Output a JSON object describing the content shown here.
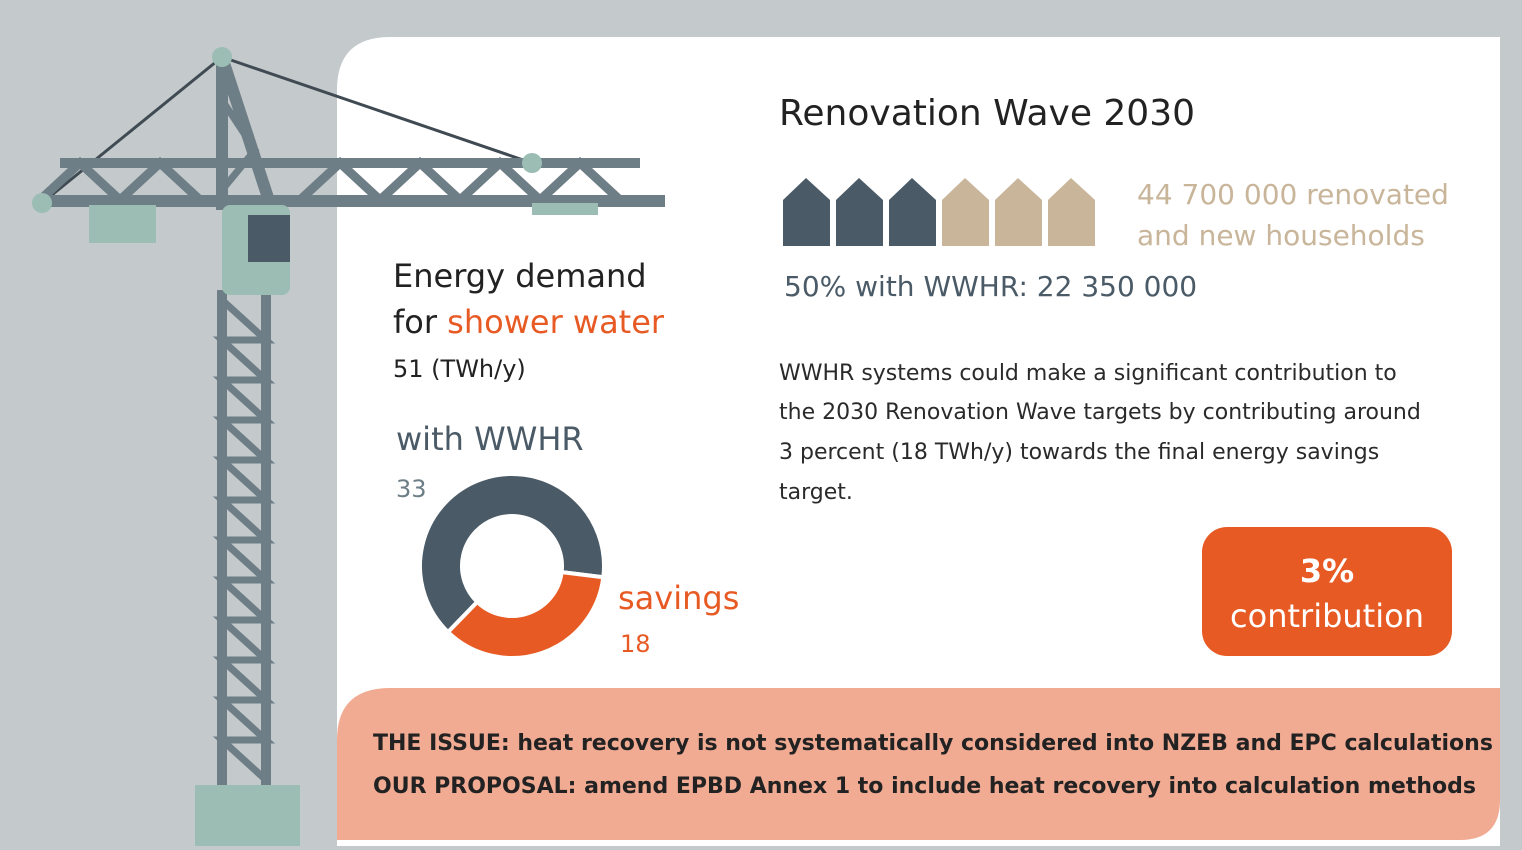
{
  "title": "Renovation Wave 2030",
  "households": [
    "44 700 000 renovated",
    "and new households"
  ],
  "wwhr_share": "50% with WWHR: 22 350 000",
  "description": [
    "WWHR systems could make a significant contribution to",
    "the 2030 Renovation Wave targets by contributing around",
    "3 percent (18 TWh/y) towards the final energy savings",
    "target."
  ],
  "badge": [
    "3%",
    "contribution"
  ],
  "demand": {
    "line1": "Energy demand",
    "line2_prefix": "for",
    "line2_highlight": "shower water",
    "total": "51 (TWh/y)"
  },
  "chart_data": {
    "type": "donut",
    "series": [
      {
        "name": "with WWHR",
        "color": "#4a5a66",
        "value": 33
      },
      {
        "name": "savings",
        "color": "#e85a24",
        "value": 18
      }
    ]
  },
  "footer": [
    "THE ISSUE: heat recovery is not systematically considered into NZEB and EPC calculations",
    "OUR PROPOSAL: amend EPBD Annex 1 to include heat recovery into calculation methods"
  ]
}
